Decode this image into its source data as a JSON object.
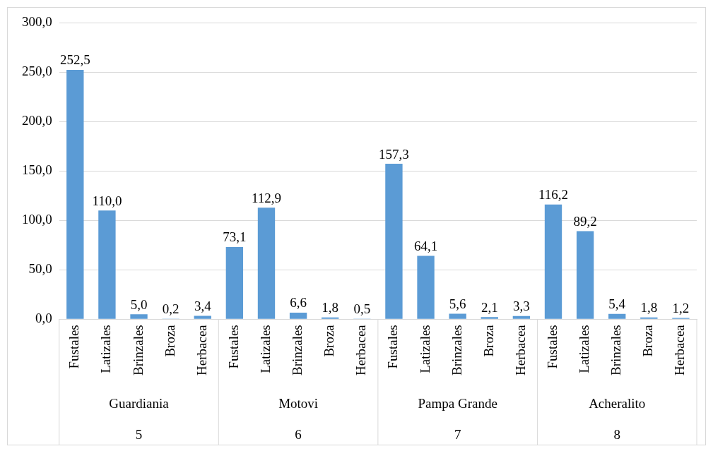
{
  "chart_data": {
    "type": "bar",
    "categories": [
      "Fustales",
      "Latizales",
      "Brinzales",
      "Broza",
      "Herbacea",
      "Fustales",
      "Latizales",
      "Brinzales",
      "Broza",
      "Herbacea",
      "Fustales",
      "Latizales",
      "Brinzales",
      "Broza",
      "Herbacea",
      "Fustales",
      "Latizales",
      "Brinzales",
      "Broza",
      "Herbacea"
    ],
    "values": [
      252.5,
      110.0,
      5.0,
      0.2,
      3.4,
      73.1,
      112.9,
      6.6,
      1.8,
      0.5,
      157.3,
      64.1,
      5.6,
      2.1,
      3.3,
      116.2,
      89.2,
      5.4,
      1.8,
      1.2
    ],
    "value_labels": [
      "252,5",
      "110,0",
      "5,0",
      "0,2",
      "3,4",
      "73,1",
      "112,9",
      "6,6",
      "1,8",
      "0,5",
      "157,3",
      "64,1",
      "5,6",
      "2,1",
      "3,3",
      "116,2",
      "89,2",
      "5,4",
      "1,8",
      "1,2"
    ],
    "color": "#5b9bd5",
    "ylim": [
      0,
      300
    ],
    "yticks": [
      {
        "value": 0,
        "label": "0,0"
      },
      {
        "value": 50,
        "label": "50,0"
      },
      {
        "value": 100,
        "label": "100,0"
      },
      {
        "value": 150,
        "label": "150,0"
      },
      {
        "value": 200,
        "label": "200,0"
      },
      {
        "value": 250,
        "label": "250,0"
      },
      {
        "value": 300,
        "label": "300,0"
      }
    ],
    "annotations": [
      "Guardiania",
      "Motovi",
      "Pampa Grande",
      "Acheralito",
      "5",
      "6",
      "7",
      "8"
    ],
    "grid": "y",
    "legend": false
  }
}
